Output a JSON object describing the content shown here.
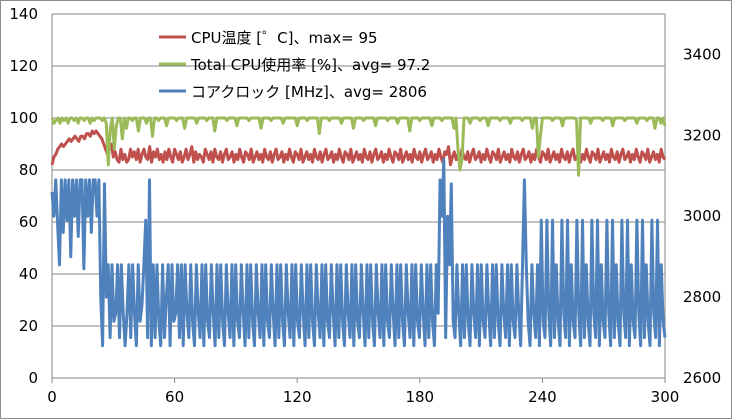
{
  "chart_data": {
    "type": "line",
    "x": {
      "min": 0,
      "max": 300,
      "ticks": [
        0,
        60,
        120,
        180,
        240,
        300
      ]
    },
    "y_left": {
      "min": 0,
      "max": 140,
      "ticks": [
        0,
        20,
        40,
        60,
        80,
        100,
        120,
        140
      ]
    },
    "y_right": {
      "min": 2600,
      "max": 3500,
      "ticks": [
        2600,
        2800,
        3000,
        3200,
        3400
      ]
    },
    "grid": true,
    "legend_position": "top-center",
    "series": [
      {
        "name": "CPU温度 [゜C]、max= 95",
        "axis": "left",
        "color": "#c0504d",
        "values": [
          82,
          85,
          86,
          88,
          89,
          90,
          89,
          90,
          91,
          92,
          91,
          92,
          93,
          92,
          91,
          93,
          93,
          92,
          94,
          94,
          93,
          95,
          94,
          95,
          94,
          93,
          92,
          90,
          88,
          86,
          88,
          90,
          85,
          87,
          84,
          83,
          88,
          84,
          86,
          83,
          84,
          88,
          85,
          87,
          84,
          88,
          83,
          86,
          88,
          85,
          84,
          89,
          83,
          87,
          85,
          88,
          84,
          86,
          83,
          87,
          84,
          88,
          85,
          83,
          88,
          86,
          84,
          87,
          83,
          85,
          88,
          84,
          86,
          89,
          83,
          87,
          84,
          86,
          85,
          83,
          88,
          86,
          84,
          87,
          83,
          88,
          85,
          84,
          87,
          83,
          86,
          88,
          84,
          85,
          87,
          83,
          86,
          84,
          88,
          85,
          83,
          87,
          86,
          84,
          88,
          83,
          85,
          87,
          84,
          86,
          83,
          88,
          85,
          84,
          87,
          83,
          86,
          88,
          84,
          85,
          87,
          83,
          86,
          84,
          88,
          85,
          83,
          87,
          86,
          84,
          88,
          83,
          85,
          87,
          84,
          86,
          83,
          88,
          85,
          84,
          87,
          83,
          86,
          88,
          84,
          85,
          87,
          83,
          86,
          84,
          88,
          85,
          83,
          87,
          86,
          84,
          88,
          83,
          85,
          87,
          84,
          86,
          83,
          88,
          85,
          84,
          87,
          83,
          86,
          88,
          84,
          85,
          87,
          83,
          86,
          84,
          88,
          85,
          83,
          87,
          86,
          84,
          88,
          83,
          85,
          87,
          84,
          86,
          83,
          88,
          85,
          84,
          87,
          83,
          86,
          88,
          84,
          85,
          87,
          83,
          86,
          84,
          88,
          85,
          83,
          87,
          86,
          89,
          82,
          85,
          87,
          84,
          86,
          83,
          88,
          85,
          84,
          87,
          83,
          86,
          88,
          84,
          85,
          87,
          83,
          86,
          84,
          88,
          85,
          83,
          87,
          86,
          84,
          88,
          83,
          85,
          87,
          84,
          86,
          83,
          88,
          85,
          84,
          87,
          83,
          86,
          88,
          84,
          85,
          87,
          83,
          86,
          84,
          88,
          85,
          83,
          87,
          86,
          84,
          88,
          83,
          85,
          87,
          84,
          86,
          83,
          88,
          85,
          84,
          87,
          83,
          86,
          88,
          84,
          85,
          87,
          83,
          86,
          84,
          88,
          85,
          83,
          87,
          86,
          84,
          88,
          83,
          85,
          87,
          84,
          86,
          83,
          88,
          85,
          84,
          87,
          83,
          86,
          88,
          84,
          85,
          87,
          83,
          86,
          84,
          88,
          85,
          83,
          87,
          86,
          84,
          88,
          83,
          85,
          87,
          84,
          86,
          83,
          88,
          85,
          84
        ]
      },
      {
        "name": "Total CPU使用率 [%]、avg= 97.2",
        "axis": "left",
        "color": "#9bbb59",
        "values": [
          100,
          98,
          99,
          100,
          98,
          100,
          99,
          100,
          98,
          100,
          100,
          99,
          100,
          98,
          100,
          100,
          99,
          100,
          100,
          98,
          100,
          99,
          100,
          100,
          100,
          99,
          100,
          98,
          82,
          96,
          100,
          88,
          97,
          100,
          100,
          92,
          100,
          96,
          100,
          100,
          99,
          100,
          100,
          95,
          100,
          100,
          100,
          98,
          100,
          100,
          93,
          100,
          100,
          99,
          100,
          100,
          100,
          97,
          100,
          100,
          100,
          100,
          99,
          100,
          100,
          100,
          96,
          100,
          100,
          100,
          100,
          100,
          98,
          100,
          100,
          100,
          100,
          99,
          100,
          100,
          100,
          95,
          100,
          100,
          100,
          100,
          100,
          99,
          100,
          100,
          100,
          100,
          97,
          100,
          100,
          100,
          100,
          100,
          99,
          100,
          100,
          100,
          100,
          100,
          96,
          100,
          100,
          100,
          100,
          99,
          100,
          100,
          100,
          100,
          100,
          98,
          100,
          100,
          100,
          100,
          100,
          100,
          97,
          100,
          100,
          100,
          100,
          99,
          100,
          100,
          100,
          100,
          100,
          94,
          100,
          100,
          100,
          100,
          99,
          100,
          100,
          100,
          100,
          100,
          98,
          100,
          100,
          100,
          100,
          100,
          96,
          100,
          100,
          100,
          100,
          99,
          100,
          100,
          100,
          100,
          100,
          97,
          100,
          100,
          100,
          100,
          100,
          99,
          100,
          100,
          100,
          100,
          98,
          100,
          100,
          100,
          100,
          100,
          95,
          100,
          100,
          100,
          100,
          99,
          100,
          100,
          100,
          100,
          100,
          97,
          100,
          100,
          100,
          100,
          99,
          100,
          100,
          100,
          100,
          100,
          96,
          100,
          88,
          80,
          84,
          100,
          100,
          100,
          98,
          100,
          100,
          100,
          100,
          99,
          100,
          100,
          100,
          97,
          100,
          100,
          100,
          100,
          100,
          99,
          100,
          100,
          100,
          100,
          98,
          100,
          100,
          100,
          100,
          100,
          99,
          100,
          100,
          100,
          100,
          96,
          100,
          100,
          85,
          93,
          100,
          100,
          100,
          100,
          100,
          99,
          100,
          100,
          100,
          100,
          97,
          100,
          100,
          100,
          100,
          100,
          100,
          99,
          78,
          100,
          100,
          100,
          100,
          100,
          98,
          100,
          100,
          100,
          100,
          100,
          99,
          100,
          100,
          100,
          100,
          97,
          100,
          100,
          100,
          100,
          100,
          99,
          100,
          100,
          100,
          100,
          100,
          98,
          100,
          100,
          100,
          100,
          99,
          100,
          100,
          100,
          96,
          100,
          100,
          98,
          100,
          97
        ]
      },
      {
        "name": "コアクロック [MHz]、avg= 2806",
        "axis": "right",
        "color": "#4f81bd",
        "values": [
          3060,
          3000,
          3090,
          2980,
          2880,
          3090,
          2960,
          3090,
          2990,
          3090,
          2900,
          3090,
          3000,
          3090,
          2950,
          3090,
          3090,
          2870,
          3090,
          3000,
          3090,
          2960,
          3090,
          3090,
          3000,
          3090,
          2800,
          2680,
          3080,
          2800,
          2880,
          2700,
          2880,
          2740,
          2760,
          2880,
          2700,
          2880,
          2760,
          2680,
          2760,
          2880,
          2700,
          2880,
          2760,
          2680,
          2880,
          2740,
          2780,
          2880,
          2990,
          2700,
          3090,
          2680,
          2880,
          2700,
          2880,
          2740,
          2680,
          2880,
          2700,
          2800,
          2880,
          2680,
          2880,
          2740,
          2760,
          2880,
          2700,
          2880,
          2680,
          2880,
          2760,
          2700,
          2880,
          2740,
          2680,
          2880,
          2760,
          2700,
          2880,
          2680,
          2880,
          2740,
          2700,
          2880,
          2760,
          2680,
          2880,
          2700,
          2880,
          2740,
          2680,
          2880,
          2760,
          2700,
          2880,
          2680,
          2880,
          2740,
          2700,
          2880,
          2760,
          2680,
          2880,
          2700,
          2880,
          2740,
          2680,
          2880,
          2760,
          2700,
          2880,
          2680,
          2880,
          2740,
          2700,
          2880,
          2760,
          2680,
          2880,
          2700,
          2880,
          2740,
          2680,
          2880,
          2760,
          2700,
          2880,
          2680,
          2880,
          2740,
          2700,
          2880,
          2760,
          2680,
          2880,
          2700,
          2880,
          2740,
          2680,
          2880,
          2760,
          2700,
          2880,
          2680,
          2880,
          2740,
          2700,
          2880,
          2760,
          2680,
          2880,
          2700,
          2880,
          2740,
          2680,
          2880,
          2760,
          2700,
          2880,
          2680,
          2880,
          2740,
          2700,
          2880,
          2760,
          2680,
          2880,
          2700,
          2880,
          2740,
          2680,
          2880,
          2760,
          2700,
          2880,
          2680,
          2880,
          2740,
          2700,
          2880,
          2760,
          2680,
          2880,
          2700,
          2880,
          2740,
          2680,
          2880,
          2760,
          2700,
          2880,
          2680,
          2880,
          2740,
          2700,
          2880,
          2760,
          2680,
          2880,
          2700,
          2880,
          2740,
          2680,
          2880,
          2760,
          3090,
          3000,
          3140,
          2700,
          3000,
          2880,
          3080,
          2740,
          2700,
          2880,
          2760,
          2680,
          2880,
          2700,
          2880,
          2740,
          2680,
          2880,
          2760,
          2700,
          2880,
          2680,
          2880,
          2740,
          2700,
          2880,
          2760,
          2680,
          2880,
          2700,
          2880,
          2740,
          2680,
          2880,
          2760,
          2700,
          2880,
          2680,
          2880,
          2740,
          2700,
          2880,
          2760,
          2680,
          2880,
          3090,
          2880,
          2740,
          2680,
          2880,
          2760,
          2700,
          2880,
          2680,
          2990,
          2740,
          2700,
          2990,
          2760,
          2680,
          2990,
          2700,
          2880,
          2740,
          2680,
          2990,
          2760,
          2700,
          2990,
          2680,
          2880,
          2740,
          2700,
          2990,
          2760,
          2680,
          2990,
          2700,
          2880,
          2740,
          2680,
          2990,
          2760,
          2700,
          2990,
          2680,
          2880,
          2740,
          2700,
          2990,
          2760,
          2680,
          2990,
          2700,
          2880,
          2740,
          2680,
          2990,
          2760,
          2700,
          2990,
          2680,
          2880,
          2740,
          2700,
          2990,
          2760,
          2680,
          2990,
          2700,
          2880,
          2740,
          2680,
          2990,
          2760,
          2700,
          2990,
          2680,
          2880,
          2740,
          2700
        ]
      }
    ]
  }
}
